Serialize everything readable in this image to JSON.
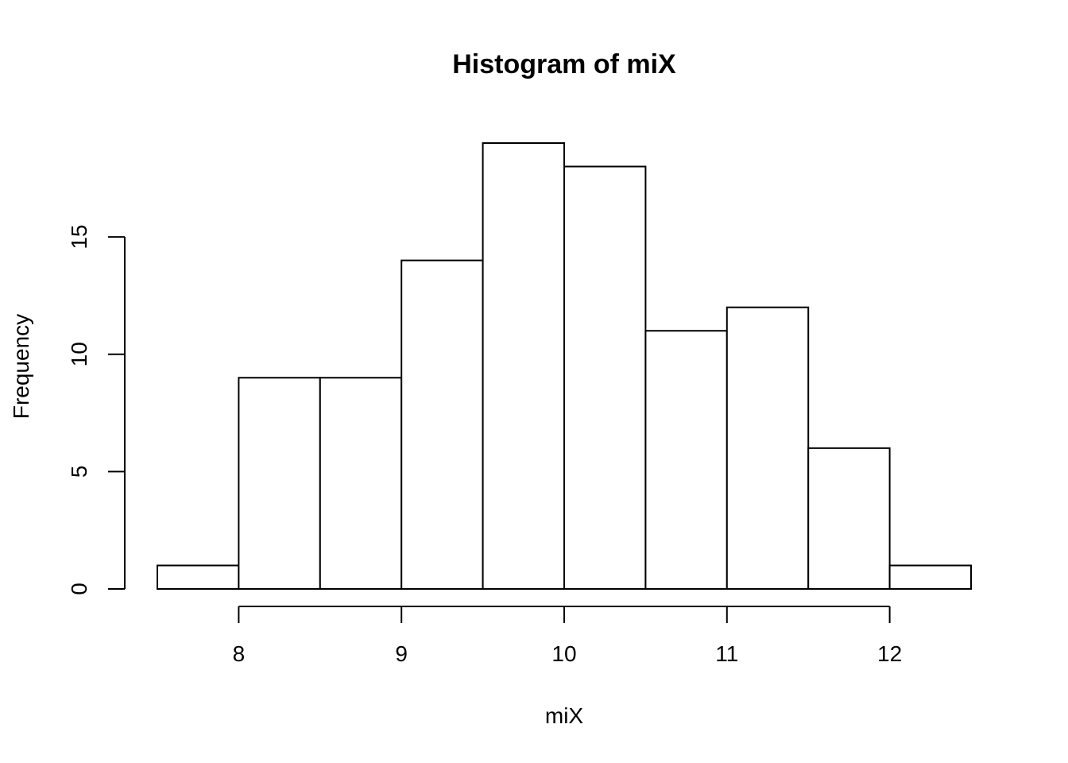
{
  "chart_data": {
    "type": "bar",
    "title": "Histogram of miX",
    "xlabel": "miX",
    "ylabel": "Frequency",
    "bin_edges": [
      7.5,
      8.0,
      8.5,
      9.0,
      9.5,
      10.0,
      10.5,
      11.0,
      11.5,
      12.0,
      12.5
    ],
    "values": [
      1,
      9,
      9,
      14,
      19,
      18,
      11,
      12,
      6,
      1
    ],
    "x_ticks": [
      8,
      9,
      10,
      11,
      12
    ],
    "y_ticks": [
      0,
      5,
      10,
      15
    ],
    "xlim": [
      7.5,
      12.5
    ],
    "ylim": [
      0,
      19
    ],
    "grid": false,
    "colors": {
      "bar_fill": "#ffffff",
      "bar_stroke": "#000000"
    }
  }
}
